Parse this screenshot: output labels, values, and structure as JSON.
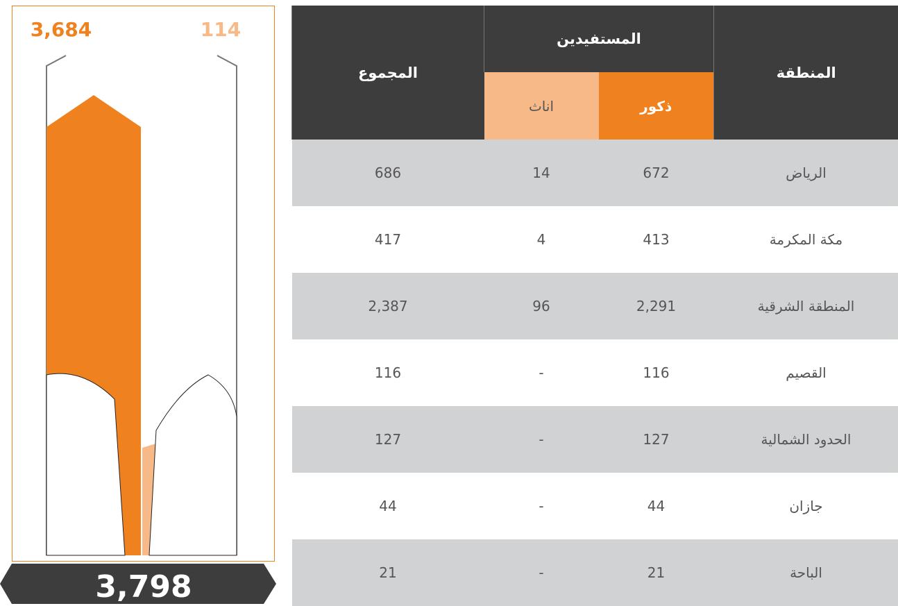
{
  "panel": {
    "male_total": "3,684",
    "female_total": "114",
    "grand_total": "3,798"
  },
  "table": {
    "headers": {
      "region": "المنطقة",
      "beneficiaries": "المستفيدين",
      "male": "ذكور",
      "female": "اناث",
      "total": "المجموع"
    },
    "rows": [
      [
        "الرياض",
        "672",
        "14",
        "686"
      ],
      [
        "مكة المكرمة",
        "413",
        "4",
        "417"
      ],
      [
        "المنطقة الشرقية",
        "2,291",
        "96",
        "2,387"
      ],
      [
        "القصيم",
        "116",
        "-",
        "116"
      ],
      [
        "الحدود الشمالية",
        "127",
        "-",
        "127"
      ],
      [
        "جازان",
        "44",
        "-",
        "44"
      ],
      [
        "الباحة",
        "21",
        "-",
        "21"
      ]
    ]
  }
}
